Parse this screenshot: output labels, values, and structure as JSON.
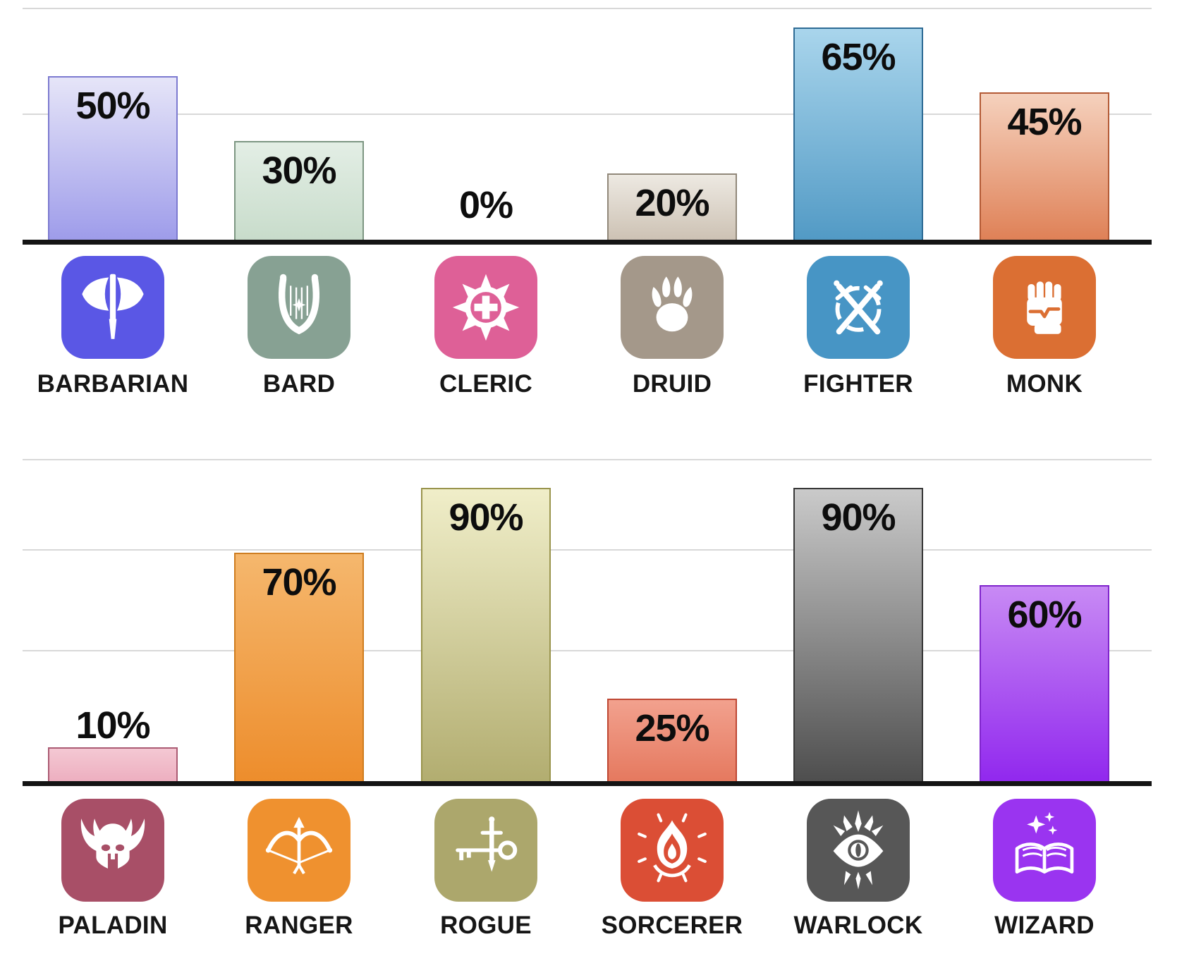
{
  "chart_data": {
    "type": "bar",
    "title": "",
    "xlabel": "",
    "ylabel": "",
    "unit": "%",
    "ylim": [
      0,
      100
    ],
    "grid": true,
    "legend": false,
    "value_label_format": "{value}%",
    "rows": [
      {
        "categories": [
          "BARBARIAN",
          "BARD",
          "CLERIC",
          "DRUID",
          "FIGHTER",
          "MONK"
        ],
        "values": [
          50,
          30,
          0,
          20,
          65,
          45
        ],
        "value_labels": [
          "50%",
          "30%",
          "0%",
          "20%",
          "65%",
          "45%"
        ]
      },
      {
        "categories": [
          "PALADIN",
          "RANGER",
          "ROGUE",
          "SORCERER",
          "WARLOCK",
          "WIZARD"
        ],
        "values": [
          10,
          70,
          90,
          25,
          90,
          60
        ],
        "value_labels": [
          "10%",
          "70%",
          "90%",
          "25%",
          "90%",
          "60%"
        ]
      }
    ]
  },
  "classes": [
    {
      "row": 0,
      "col": 0,
      "name": "BARBARIAN",
      "value": 50,
      "value_label": "50%",
      "icon": "axe-icon",
      "colors": {
        "icon_bg": "#5A57E5",
        "bar_top": "#E6E5F8",
        "bar_bottom": "#9E9CEA",
        "bar_border": "#7C7AD0"
      }
    },
    {
      "row": 0,
      "col": 1,
      "name": "BARD",
      "value": 30,
      "value_label": "30%",
      "icon": "lyre-icon",
      "colors": {
        "icon_bg": "#87A193",
        "bar_top": "#E3EEE5",
        "bar_bottom": "#C8DCCB",
        "bar_border": "#7D9682"
      }
    },
    {
      "row": 0,
      "col": 2,
      "name": "CLERIC",
      "value": 0,
      "value_label": "0%",
      "icon": "holy-symbol-icon",
      "colors": {
        "icon_bg": "#DE6097",
        "bar_top": "#F7D9E6",
        "bar_bottom": "#EFBBD2",
        "bar_border": "#C05581"
      }
    },
    {
      "row": 0,
      "col": 3,
      "name": "DRUID",
      "value": 20,
      "value_label": "20%",
      "icon": "paw-icon",
      "colors": {
        "icon_bg": "#A4988A",
        "bar_top": "#EDE9E2",
        "bar_bottom": "#CDC2B4",
        "bar_border": "#91887A"
      }
    },
    {
      "row": 0,
      "col": 4,
      "name": "FIGHTER",
      "value": 65,
      "value_label": "65%",
      "icon": "crossed-swords-icon",
      "colors": {
        "icon_bg": "#4795C5",
        "bar_top": "#A9D5EC",
        "bar_bottom": "#529AC5",
        "bar_border": "#2E6B94"
      }
    },
    {
      "row": 0,
      "col": 5,
      "name": "MONK",
      "value": 45,
      "value_label": "45%",
      "icon": "fist-icon",
      "colors": {
        "icon_bg": "#DB6F33",
        "bar_top": "#F5D1BD",
        "bar_bottom": "#DF8157",
        "bar_border": "#B35A35"
      }
    },
    {
      "row": 1,
      "col": 0,
      "name": "PALADIN",
      "value": 10,
      "value_label": "10%",
      "icon": "winged-helmet-icon",
      "colors": {
        "icon_bg": "#A84F67",
        "bar_top": "#F4C8D3",
        "bar_bottom": "#EDAFC0",
        "bar_border": "#AB5B73"
      }
    },
    {
      "row": 1,
      "col": 1,
      "name": "RANGER",
      "value": 70,
      "value_label": "70%",
      "icon": "bow-arrow-icon",
      "colors": {
        "icon_bg": "#EF912F",
        "bar_top": "#F5B76D",
        "bar_bottom": "#ED8D2C",
        "bar_border": "#CE7D20"
      }
    },
    {
      "row": 1,
      "col": 2,
      "name": "ROGUE",
      "value": 90,
      "value_label": "90%",
      "icon": "key-dagger-icon",
      "colors": {
        "icon_bg": "#ACA76C",
        "bar_top": "#F0EEC9",
        "bar_bottom": "#B2AD70",
        "bar_border": "#99944D"
      }
    },
    {
      "row": 1,
      "col": 3,
      "name": "SORCERER",
      "value": 25,
      "value_label": "25%",
      "icon": "flame-icon",
      "colors": {
        "icon_bg": "#DB4E35",
        "bar_top": "#F2A18E",
        "bar_bottom": "#E5795F",
        "bar_border": "#BE4733"
      }
    },
    {
      "row": 1,
      "col": 4,
      "name": "WARLOCK",
      "value": 90,
      "value_label": "90%",
      "icon": "eye-icon",
      "colors": {
        "icon_bg": "#575757",
        "bar_top": "#CACACA",
        "bar_bottom": "#4E4E4E",
        "bar_border": "#383838"
      }
    },
    {
      "row": 1,
      "col": 5,
      "name": "WIZARD",
      "value": 60,
      "value_label": "60%",
      "icon": "spellbook-icon",
      "colors": {
        "icon_bg": "#9A34F0",
        "bar_top": "#C88AF4",
        "bar_bottom": "#9128EE",
        "bar_border": "#7F24CC"
      }
    }
  ]
}
